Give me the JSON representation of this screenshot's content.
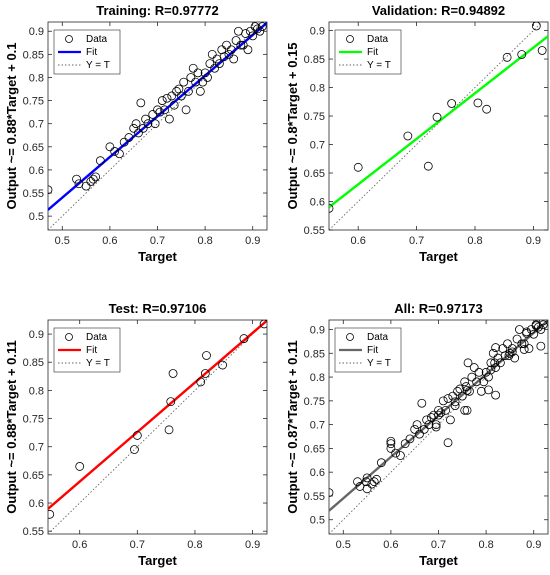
{
  "chart_data": [
    {
      "type": "scatter",
      "title": "Training: R=0.97772",
      "xlabel": "Target",
      "ylabel": "Output ~= 0.88*Target + 0.1",
      "xlim": [
        0.47,
        0.93
      ],
      "ylim": [
        0.47,
        0.92
      ],
      "xticks": [
        "0.5",
        "0.6",
        "0.7",
        "0.8",
        "0.9"
      ],
      "yticks": [
        "0.5",
        "0.55",
        "0.6",
        "0.65",
        "0.7",
        "0.75",
        "0.8",
        "0.85",
        "0.9"
      ],
      "fit": {
        "slope": 0.88,
        "intercept": 0.1,
        "color": "#0000ff"
      },
      "legend": [
        "Data",
        "Fit",
        "Y = T"
      ],
      "points": [
        [
          0.47,
          0.557
        ],
        [
          0.53,
          0.58
        ],
        [
          0.535,
          0.57
        ],
        [
          0.55,
          0.565
        ],
        [
          0.56,
          0.575
        ],
        [
          0.565,
          0.58
        ],
        [
          0.57,
          0.585
        ],
        [
          0.58,
          0.62
        ],
        [
          0.6,
          0.65
        ],
        [
          0.61,
          0.64
        ],
        [
          0.62,
          0.635
        ],
        [
          0.63,
          0.66
        ],
        [
          0.64,
          0.67
        ],
        [
          0.65,
          0.69
        ],
        [
          0.655,
          0.7
        ],
        [
          0.66,
          0.68
        ],
        [
          0.665,
          0.745
        ],
        [
          0.67,
          0.69
        ],
        [
          0.675,
          0.71
        ],
        [
          0.68,
          0.7
        ],
        [
          0.69,
          0.72
        ],
        [
          0.695,
          0.7
        ],
        [
          0.7,
          0.73
        ],
        [
          0.705,
          0.725
        ],
        [
          0.71,
          0.75
        ],
        [
          0.715,
          0.73
        ],
        [
          0.72,
          0.755
        ],
        [
          0.725,
          0.71
        ],
        [
          0.73,
          0.76
        ],
        [
          0.735,
          0.74
        ],
        [
          0.74,
          0.77
        ],
        [
          0.745,
          0.775
        ],
        [
          0.75,
          0.76
        ],
        [
          0.755,
          0.79
        ],
        [
          0.76,
          0.73
        ],
        [
          0.765,
          0.77
        ],
        [
          0.77,
          0.8
        ],
        [
          0.775,
          0.82
        ],
        [
          0.78,
          0.79
        ],
        [
          0.785,
          0.81
        ],
        [
          0.79,
          0.77
        ],
        [
          0.795,
          0.79
        ],
        [
          0.8,
          0.81
        ],
        [
          0.805,
          0.8
        ],
        [
          0.81,
          0.83
        ],
        [
          0.815,
          0.85
        ],
        [
          0.82,
          0.82
        ],
        [
          0.825,
          0.84
        ],
        [
          0.83,
          0.83
        ],
        [
          0.835,
          0.86
        ],
        [
          0.84,
          0.845
        ],
        [
          0.845,
          0.87
        ],
        [
          0.85,
          0.85
        ],
        [
          0.855,
          0.86
        ],
        [
          0.86,
          0.84
        ],
        [
          0.865,
          0.88
        ],
        [
          0.87,
          0.9
        ],
        [
          0.875,
          0.87
        ],
        [
          0.88,
          0.87
        ],
        [
          0.885,
          0.895
        ],
        [
          0.89,
          0.86
        ],
        [
          0.895,
          0.9
        ],
        [
          0.9,
          0.89
        ],
        [
          0.905,
          0.91
        ],
        [
          0.91,
          0.905
        ],
        [
          0.915,
          0.9
        ],
        [
          0.92,
          0.91
        ]
      ]
    },
    {
      "type": "scatter",
      "title": "Validation: R=0.94892",
      "xlabel": "Target",
      "ylabel": "Output ~= 0.8*Target + 0.15",
      "xlim": [
        0.55,
        0.925
      ],
      "ylim": [
        0.55,
        0.915
      ],
      "xticks": [
        "0.6",
        "0.7",
        "0.8",
        "0.9"
      ],
      "yticks": [
        "0.55",
        "0.6",
        "0.65",
        "0.7",
        "0.75",
        "0.8",
        "0.85",
        "0.9"
      ],
      "fit": {
        "slope": 0.8,
        "intercept": 0.15,
        "color": "#00ff00"
      },
      "legend": [
        "Data",
        "Fit",
        "Y = T"
      ],
      "points": [
        [
          0.55,
          0.588
        ],
        [
          0.6,
          0.66
        ],
        [
          0.685,
          0.715
        ],
        [
          0.72,
          0.662
        ],
        [
          0.735,
          0.748
        ],
        [
          0.76,
          0.772
        ],
        [
          0.805,
          0.773
        ],
        [
          0.82,
          0.762
        ],
        [
          0.855,
          0.853
        ],
        [
          0.88,
          0.858
        ],
        [
          0.905,
          0.908
        ],
        [
          0.915,
          0.865
        ]
      ]
    },
    {
      "type": "scatter",
      "title": "Test: R=0.97106",
      "xlabel": "Target",
      "ylabel": "Output ~= 0.88*Target + 0.11",
      "xlim": [
        0.545,
        0.925
      ],
      "ylim": [
        0.545,
        0.925
      ],
      "xticks": [
        "0.6",
        "0.7",
        "0.8",
        "0.9"
      ],
      "yticks": [
        "0.55",
        "0.6",
        "0.65",
        "0.7",
        "0.75",
        "0.8",
        "0.85",
        "0.9"
      ],
      "fit": {
        "slope": 0.88,
        "intercept": 0.11,
        "color": "#ff0000"
      },
      "legend": [
        "Data",
        "Fit",
        "Y = T"
      ],
      "points": [
        [
          0.548,
          0.58
        ],
        [
          0.6,
          0.665
        ],
        [
          0.695,
          0.695
        ],
        [
          0.7,
          0.72
        ],
        [
          0.755,
          0.73
        ],
        [
          0.758,
          0.78
        ],
        [
          0.762,
          0.83
        ],
        [
          0.81,
          0.815
        ],
        [
          0.818,
          0.83
        ],
        [
          0.82,
          0.862
        ],
        [
          0.848,
          0.845
        ],
        [
          0.885,
          0.892
        ],
        [
          0.92,
          0.918
        ]
      ]
    },
    {
      "type": "scatter",
      "title": "All: R=0.97173",
      "xlabel": "Target",
      "ylabel": "Output ~= 0.87*Target + 0.11",
      "xlim": [
        0.47,
        0.93
      ],
      "ylim": [
        0.47,
        0.92
      ],
      "xticks": [
        "0.5",
        "0.6",
        "0.7",
        "0.8",
        "0.9"
      ],
      "yticks": [
        "0.5",
        "0.55",
        "0.6",
        "0.65",
        "0.7",
        "0.75",
        "0.8",
        "0.85",
        "0.9"
      ],
      "fit": {
        "slope": 0.87,
        "intercept": 0.11,
        "color": "#666666"
      },
      "legend": [
        "Data",
        "Fit",
        "Y = T"
      ],
      "points": [
        [
          0.47,
          0.557
        ],
        [
          0.53,
          0.58
        ],
        [
          0.535,
          0.57
        ],
        [
          0.548,
          0.58
        ],
        [
          0.55,
          0.565
        ],
        [
          0.55,
          0.588
        ],
        [
          0.56,
          0.575
        ],
        [
          0.565,
          0.58
        ],
        [
          0.57,
          0.585
        ],
        [
          0.58,
          0.62
        ],
        [
          0.6,
          0.65
        ],
        [
          0.6,
          0.66
        ],
        [
          0.6,
          0.665
        ],
        [
          0.61,
          0.64
        ],
        [
          0.62,
          0.635
        ],
        [
          0.63,
          0.66
        ],
        [
          0.64,
          0.67
        ],
        [
          0.65,
          0.69
        ],
        [
          0.655,
          0.7
        ],
        [
          0.66,
          0.68
        ],
        [
          0.665,
          0.745
        ],
        [
          0.67,
          0.69
        ],
        [
          0.675,
          0.71
        ],
        [
          0.68,
          0.7
        ],
        [
          0.685,
          0.715
        ],
        [
          0.69,
          0.72
        ],
        [
          0.695,
          0.695
        ],
        [
          0.695,
          0.7
        ],
        [
          0.7,
          0.72
        ],
        [
          0.7,
          0.73
        ],
        [
          0.705,
          0.725
        ],
        [
          0.71,
          0.75
        ],
        [
          0.715,
          0.73
        ],
        [
          0.72,
          0.662
        ],
        [
          0.72,
          0.755
        ],
        [
          0.725,
          0.71
        ],
        [
          0.73,
          0.76
        ],
        [
          0.735,
          0.74
        ],
        [
          0.735,
          0.748
        ],
        [
          0.74,
          0.77
        ],
        [
          0.745,
          0.775
        ],
        [
          0.75,
          0.76
        ],
        [
          0.755,
          0.73
        ],
        [
          0.755,
          0.79
        ],
        [
          0.758,
          0.78
        ],
        [
          0.76,
          0.73
        ],
        [
          0.76,
          0.772
        ],
        [
          0.762,
          0.83
        ],
        [
          0.765,
          0.77
        ],
        [
          0.77,
          0.8
        ],
        [
          0.775,
          0.82
        ],
        [
          0.78,
          0.79
        ],
        [
          0.785,
          0.81
        ],
        [
          0.79,
          0.77
        ],
        [
          0.795,
          0.79
        ],
        [
          0.8,
          0.81
        ],
        [
          0.805,
          0.773
        ],
        [
          0.805,
          0.8
        ],
        [
          0.81,
          0.815
        ],
        [
          0.81,
          0.83
        ],
        [
          0.815,
          0.85
        ],
        [
          0.818,
          0.83
        ],
        [
          0.82,
          0.762
        ],
        [
          0.82,
          0.82
        ],
        [
          0.82,
          0.862
        ],
        [
          0.825,
          0.84
        ],
        [
          0.83,
          0.83
        ],
        [
          0.835,
          0.86
        ],
        [
          0.84,
          0.845
        ],
        [
          0.845,
          0.87
        ],
        [
          0.848,
          0.845
        ],
        [
          0.85,
          0.85
        ],
        [
          0.855,
          0.853
        ],
        [
          0.855,
          0.86
        ],
        [
          0.86,
          0.84
        ],
        [
          0.865,
          0.88
        ],
        [
          0.87,
          0.9
        ],
        [
          0.875,
          0.87
        ],
        [
          0.88,
          0.858
        ],
        [
          0.88,
          0.87
        ],
        [
          0.885,
          0.892
        ],
        [
          0.885,
          0.895
        ],
        [
          0.89,
          0.86
        ],
        [
          0.895,
          0.9
        ],
        [
          0.9,
          0.89
        ],
        [
          0.905,
          0.908
        ],
        [
          0.905,
          0.91
        ],
        [
          0.91,
          0.905
        ],
        [
          0.915,
          0.865
        ],
        [
          0.915,
          0.9
        ],
        [
          0.92,
          0.91
        ],
        [
          0.92,
          0.918
        ]
      ]
    }
  ]
}
